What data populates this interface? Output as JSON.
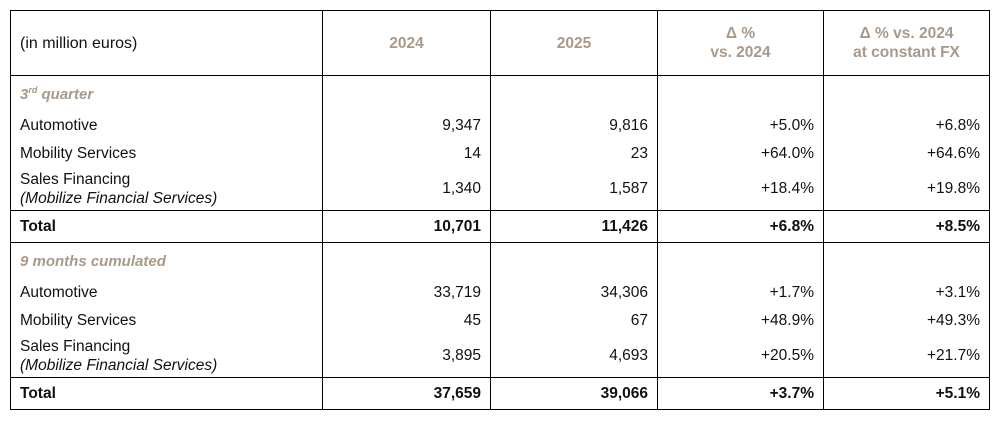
{
  "header": {
    "label": "(in million euros)",
    "col2024": "2024",
    "col2025": "2025",
    "delta_line1": "Δ %",
    "delta_line2": "vs. 2024",
    "fx_line1": "Δ % vs. 2024",
    "fx_line2": "at constant FX"
  },
  "q3": {
    "title_pre": "3",
    "title_sup": "rd",
    "title_post": " quarter",
    "rows": [
      {
        "label": "Automotive",
        "sub": "",
        "v2024": "9,347",
        "v2025": "9,816",
        "delta": "+5.0%",
        "fx": "+6.8%"
      },
      {
        "label": "Mobility Services",
        "sub": "",
        "v2024": "14",
        "v2025": "23",
        "delta": "+64.0%",
        "fx": "+64.6%"
      },
      {
        "label": "Sales Financing",
        "sub": "(Mobilize Financial Services)",
        "v2024": "1,340",
        "v2025": "1,587",
        "delta": "+18.4%",
        "fx": "+19.8%"
      }
    ],
    "total": {
      "label": "Total",
      "v2024": "10,701",
      "v2025": "11,426",
      "delta": "+6.8%",
      "fx": "+8.5%"
    }
  },
  "m9": {
    "title": "9 months cumulated",
    "rows": [
      {
        "label": "Automotive",
        "sub": "",
        "v2024": "33,719",
        "v2025": "34,306",
        "delta": "+1.7%",
        "fx": "+3.1%"
      },
      {
        "label": "Mobility Services",
        "sub": "",
        "v2024": "45",
        "v2025": "67",
        "delta": "+48.9%",
        "fx": "+49.3%"
      },
      {
        "label": "Sales Financing",
        "sub": "(Mobilize Financial Services)",
        "v2024": "3,895",
        "v2025": "4,693",
        "delta": "+20.5%",
        "fx": "+21.7%"
      }
    ],
    "total": {
      "label": "Total",
      "v2024": "37,659",
      "v2025": "39,066",
      "delta": "+3.7%",
      "fx": "+5.1%"
    }
  },
  "colors": {
    "header_text": "#a8998a",
    "border": "#000000"
  }
}
